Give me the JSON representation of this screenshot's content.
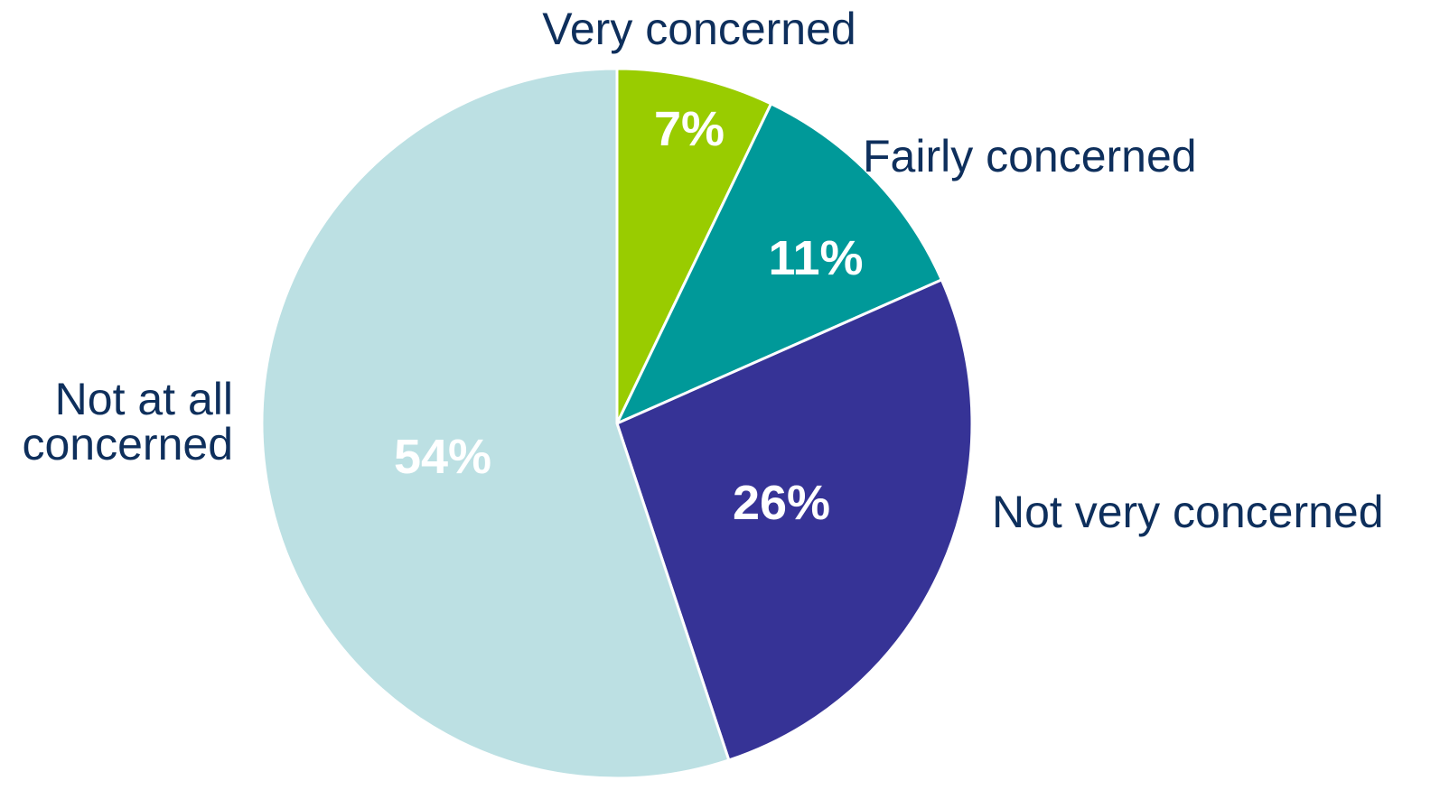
{
  "chart_data": {
    "type": "pie",
    "title": "",
    "start_angle": "12 o'clock",
    "direction": "clockwise",
    "slices": [
      {
        "label": "Very concerned",
        "value": 7,
        "display": "7%",
        "color": "#99cc00"
      },
      {
        "label": "Fairly concerned",
        "value": 11,
        "display": "11%",
        "color": "#009999"
      },
      {
        "label": "Not very concerned",
        "value": 26,
        "display": "26%",
        "color": "#363396"
      },
      {
        "label_lines": [
          "Not at all",
          "concerned"
        ],
        "value": 54,
        "display": "54%",
        "color": "#bce0e3"
      }
    ]
  }
}
